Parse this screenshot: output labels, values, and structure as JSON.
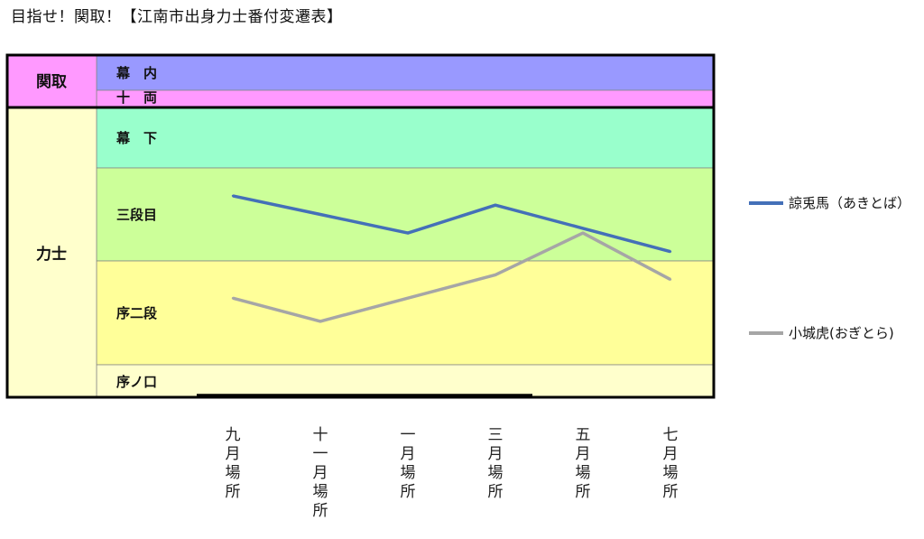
{
  "title": "目指せ！関取！【江南市出身力士番付変遷表】",
  "chart_data": {
    "type": "line",
    "categories": [
      "九月場所",
      "十一月場所",
      "一月場所",
      "三月場所",
      "五月場所",
      "七月場所"
    ],
    "divisions": [
      "幕内",
      "十両",
      "幕下",
      "三段目",
      "序二段",
      "序ノ口"
    ],
    "side_groups": [
      "関取",
      "力士"
    ],
    "band_labels": [
      "幕　内",
      "十　両",
      "幕　下",
      "三段目",
      "序二段",
      "序ノ口"
    ],
    "y_scale": "rank position (top = 幕内, bottom = 序ノ口)",
    "series": [
      {
        "name": "諒兎馬（あきとば）",
        "color": "#4470b8",
        "values": [
          2.3,
          2.5,
          2.7,
          2.4,
          2.65,
          2.9
        ]
      },
      {
        "name": "小城虎(おぎとら)",
        "color": "#a6a6a6",
        "values": [
          3.4,
          3.65,
          3.4,
          3.15,
          2.7,
          3.2
        ]
      }
    ],
    "colors": {
      "makuuchi": "#9999ff",
      "juryo": "#ff99ff",
      "makushita": "#99ffcc",
      "sandanme": "#ccff99",
      "jonidan": "#ffff99",
      "jonokuchi": "#ffffcc",
      "sekitori_label": "#ff99ff",
      "rikishi_label": "#ffffcc"
    },
    "legend_position": "right"
  }
}
